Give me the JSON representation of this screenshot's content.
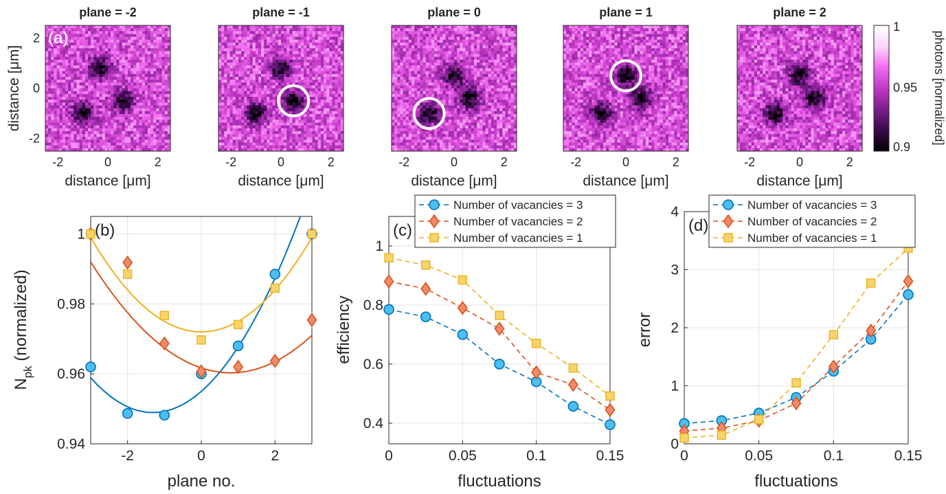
{
  "colors": {
    "series_3": "#0072BD",
    "series_3_fill": "#4DBEEE",
    "series_2": "#D95319",
    "series_2_fill": "#F08A6A",
    "series_1": "#EDB120",
    "series_1_fill": "#F7D46B",
    "colormap": [
      "#000000",
      "#3a0a4a",
      "#7a1f8e",
      "#c038c4",
      "#f06cf0",
      "#fdd6fd",
      "#ffffff"
    ]
  },
  "panel_a": {
    "label": "(a)",
    "planes": [
      {
        "title": "plane = -2",
        "circle": null
      },
      {
        "title": "plane = -1",
        "circle": [
          0.5,
          -0.5
        ]
      },
      {
        "title": "plane = 0",
        "circle": [
          -1.0,
          -1.0
        ]
      },
      {
        "title": "plane = 1",
        "circle": [
          0.0,
          0.5
        ]
      },
      {
        "title": "plane = 2",
        "circle": null
      }
    ],
    "xlabel": "distance [μm]",
    "ylabel": "distance [μm]",
    "x_ticks": [
      "-2",
      "0",
      "2"
    ],
    "y_ticks": [
      "2",
      "0",
      "-2"
    ],
    "colorbar": {
      "label": "photons [normalized]",
      "ticks": [
        "1",
        "0.95",
        "0.9"
      ],
      "range": [
        0.9,
        1.0
      ]
    },
    "dark_spots": [
      {
        "planes": [
          -2
        ],
        "x": 0.6,
        "y": -0.5
      },
      {
        "planes": [
          -2
        ],
        "x": -1.0,
        "y": -1.0
      },
      {
        "planes": [
          -2
        ],
        "x": -0.3,
        "y": 0.8
      },
      {
        "planes": [
          -1
        ],
        "x": 0.5,
        "y": -0.5
      },
      {
        "planes": [
          -1
        ],
        "x": -1.0,
        "y": -1.0
      },
      {
        "planes": [
          -1
        ],
        "x": 0.0,
        "y": 0.8
      },
      {
        "planes": [
          0
        ],
        "x": -1.0,
        "y": -1.0
      },
      {
        "planes": [
          0
        ],
        "x": 0.6,
        "y": -0.4
      },
      {
        "planes": [
          0
        ],
        "x": 0.0,
        "y": 0.5
      },
      {
        "planes": [
          1
        ],
        "x": 0.0,
        "y": 0.5
      },
      {
        "planes": [
          1
        ],
        "x": -1.0,
        "y": -1.0
      },
      {
        "planes": [
          1
        ],
        "x": 0.6,
        "y": -0.4
      },
      {
        "planes": [
          2
        ],
        "x": -1.0,
        "y": -1.0
      },
      {
        "planes": [
          2
        ],
        "x": 0.0,
        "y": 0.5
      },
      {
        "planes": [
          2
        ],
        "x": 0.6,
        "y": -0.4
      }
    ]
  },
  "chart_data": [
    {
      "panel": "(b)",
      "type": "scatter",
      "xlabel": "plane no.",
      "ylabel": "N",
      "ylabel_sub": "pk",
      "ylabel_rest": " (normalized)",
      "xlim": [
        -3,
        3
      ],
      "ylim": [
        0.94,
        1.005
      ],
      "x_ticks": [
        -2,
        0,
        2
      ],
      "y_ticks": [
        0.94,
        0.96,
        0.98,
        1
      ],
      "y_tick_labels": [
        "0.94",
        "0.96",
        "0.98",
        "1"
      ],
      "grid": true,
      "x": [
        -3,
        -2,
        -1,
        0,
        1,
        2,
        3
      ],
      "series": [
        {
          "marker": "circle",
          "values": [
            0.962,
            0.9487,
            0.9482,
            0.96,
            0.968,
            0.9885,
            1.0
          ],
          "fit": {
            "a": 0.0035,
            "b": 0.0092,
            "c": 0.955
          }
        },
        {
          "marker": "diamond",
          "values": [
            1.0,
            0.9918,
            0.9687,
            0.9607,
            0.962,
            0.9637,
            0.9754
          ],
          "fit": {
            "a": 0.0022,
            "b": -0.0035,
            "c": 0.9617
          }
        },
        {
          "marker": "square",
          "values": [
            1.0,
            0.9885,
            0.9767,
            0.9697,
            0.9741,
            0.9845,
            1.0
          ],
          "fit": {
            "a": 0.003,
            "b": 0.0,
            "c": 0.972
          }
        }
      ]
    },
    {
      "panel": "(c)",
      "type": "line",
      "xlabel": "fluctuations",
      "ylabel": "efficiency",
      "xlim": [
        0,
        0.15
      ],
      "ylim": [
        0.33,
        1.1
      ],
      "x_ticks": [
        0,
        0.05,
        0.1,
        0.15
      ],
      "x_tick_labels": [
        "0",
        "0.05",
        "0.1",
        "0.15"
      ],
      "y_ticks": [
        0.4,
        0.6,
        0.8,
        1
      ],
      "y_tick_labels": [
        "0.4",
        "0.6",
        "0.8",
        "1"
      ],
      "grid": true,
      "legend_position": "top-right",
      "x": [
        0,
        0.025,
        0.05,
        0.075,
        0.1,
        0.125,
        0.15
      ],
      "series": [
        {
          "name": "Number of vacancies = 3",
          "marker": "circle",
          "values": [
            0.785,
            0.76,
            0.7,
            0.6,
            0.54,
            0.457,
            0.395
          ]
        },
        {
          "name": "Number of vacancies = 2",
          "marker": "diamond",
          "values": [
            0.88,
            0.855,
            0.79,
            0.72,
            0.572,
            0.53,
            0.445
          ]
        },
        {
          "name": "Number of vacancies = 1",
          "marker": "square",
          "values": [
            0.96,
            0.935,
            0.885,
            0.765,
            0.67,
            0.587,
            0.492
          ]
        }
      ]
    },
    {
      "panel": "(d)",
      "type": "line",
      "xlabel": "fluctuations",
      "ylabel": "error",
      "xlim": [
        0,
        0.15
      ],
      "ylim": [
        0,
        4
      ],
      "x_ticks": [
        0,
        0.05,
        0.1,
        0.15
      ],
      "x_tick_labels": [
        "0",
        "0.05",
        "0.1",
        "0.15"
      ],
      "y_ticks": [
        0,
        1,
        2,
        3,
        4
      ],
      "y_tick_labels": [
        "0",
        "1",
        "2",
        "3",
        "4"
      ],
      "grid": true,
      "legend_position": "top-right",
      "x": [
        0,
        0.025,
        0.05,
        0.075,
        0.1,
        0.125,
        0.15
      ],
      "series": [
        {
          "name": "Number of vacancies = 3",
          "marker": "circle",
          "values": [
            0.35,
            0.4,
            0.53,
            0.8,
            1.25,
            1.8,
            2.57
          ]
        },
        {
          "name": "Number of vacancies = 2",
          "marker": "diamond",
          "values": [
            0.22,
            0.27,
            0.4,
            0.7,
            1.33,
            1.95,
            2.8
          ]
        },
        {
          "name": "Number of vacancies = 1",
          "marker": "square",
          "values": [
            0.1,
            0.15,
            0.42,
            1.05,
            1.88,
            2.77,
            3.37
          ]
        }
      ]
    }
  ]
}
